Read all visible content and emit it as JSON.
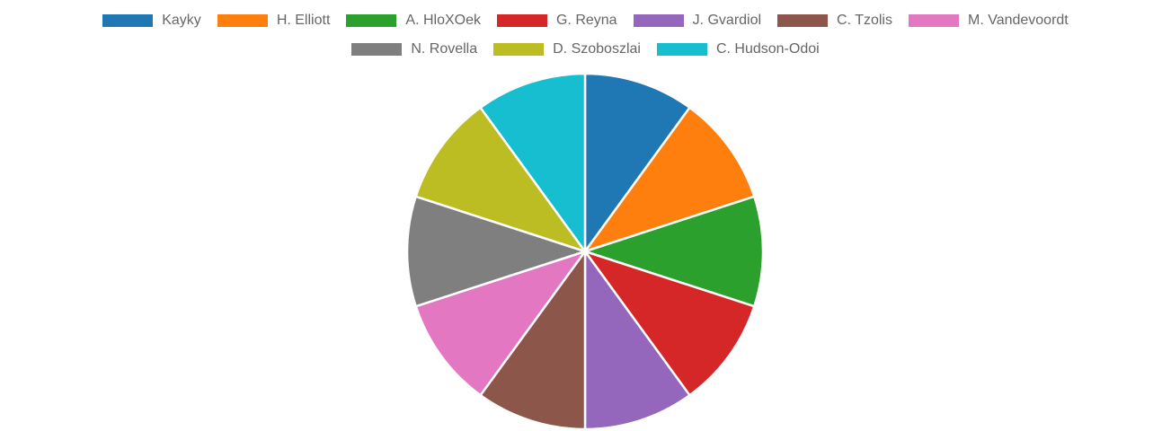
{
  "chart_data": {
    "type": "pie",
    "categories": [
      "Kayky",
      "H. Elliott",
      "A. HloXOek",
      "G. Reyna",
      "J. Gvardiol",
      "C. Tzolis",
      "M. Vandevoordt",
      "N. Rovella",
      "D. Szoboszlai",
      "C. Hudson-Odoi"
    ],
    "values": [
      1,
      1,
      1,
      1,
      1,
      1,
      1,
      1,
      1,
      1
    ],
    "colors": [
      "#1f77b4",
      "#ff7f0e",
      "#2ca02c",
      "#d62728",
      "#9467bd",
      "#8c564b",
      "#e377c2",
      "#7f7f7f",
      "#bcbd22",
      "#17becf"
    ],
    "title": "",
    "legend_position": "top"
  }
}
